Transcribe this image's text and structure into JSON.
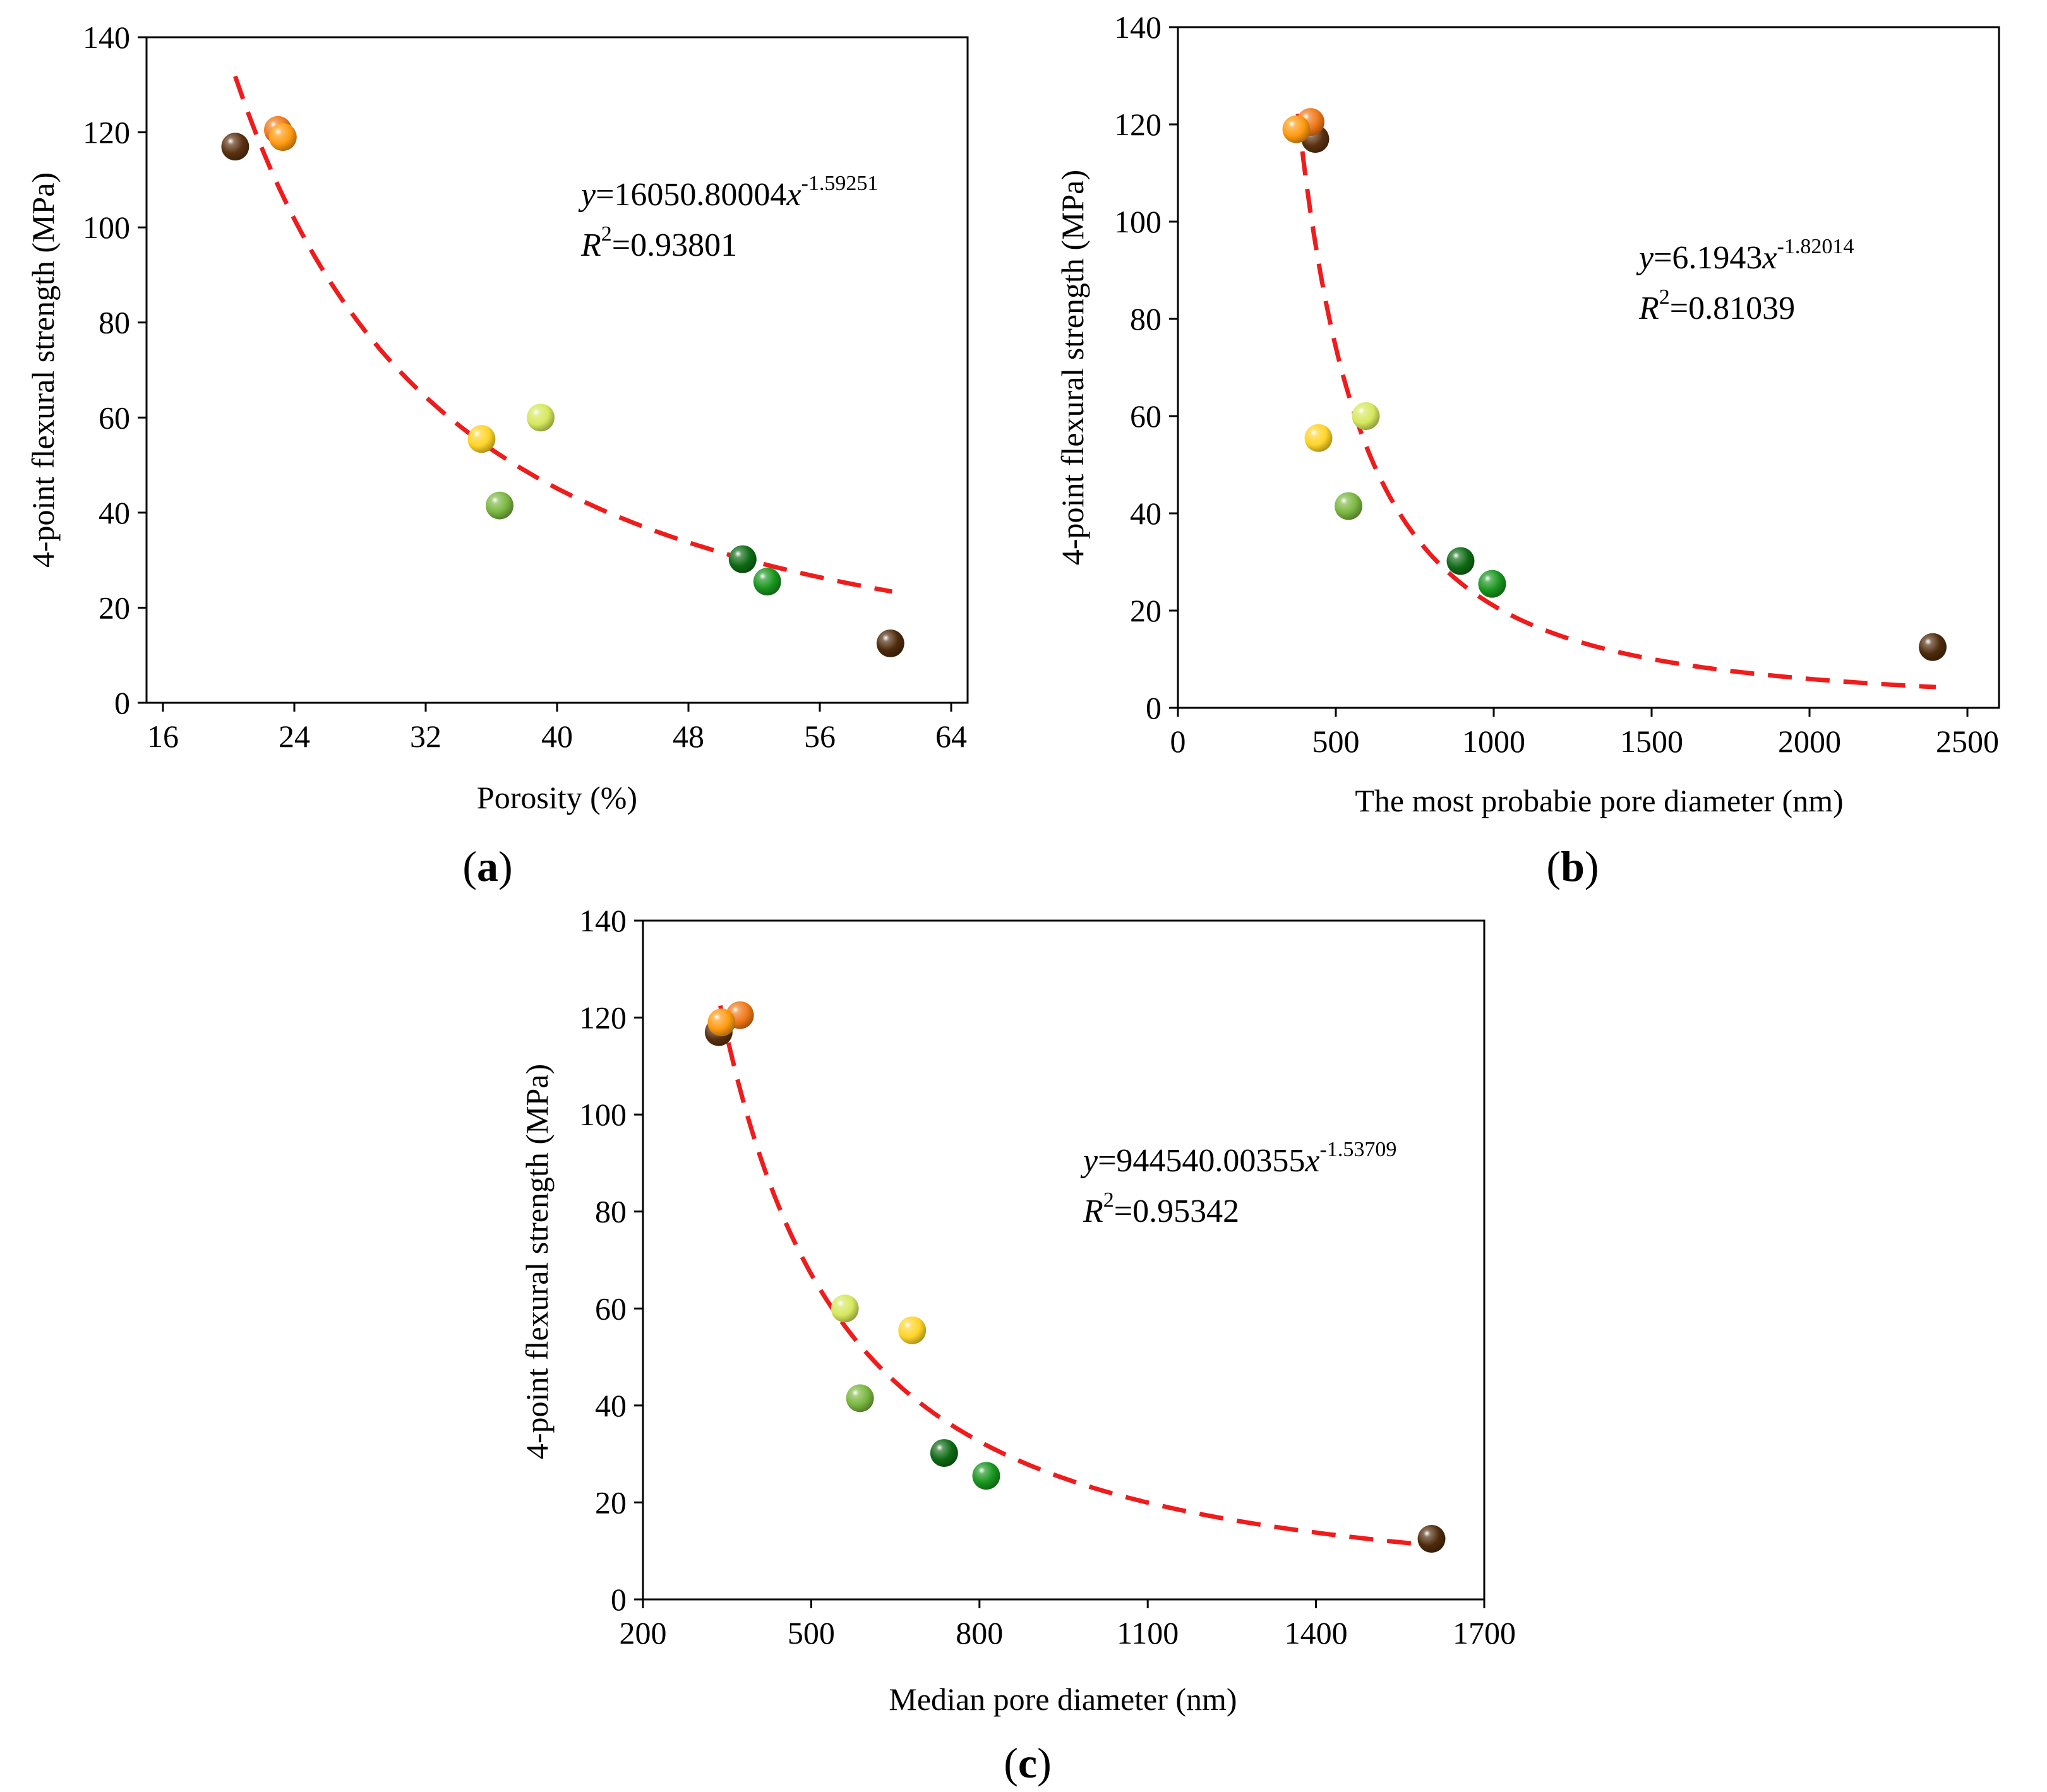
{
  "colors": {
    "fit_line": "#ee1c1c",
    "sample_1": "#5a3110",
    "sample_2": "#f07818",
    "sample_3": "#ff9a10",
    "sample_4": "#ffd428",
    "sample_5": "#d6e85c",
    "sample_6": "#7ab640",
    "sample_7": "#0e6a14",
    "sample_8": "#18951e",
    "sample_9": "#4e2a0c"
  },
  "chart_data": [
    {
      "panel": "(a)",
      "panel_letter": "a",
      "type": "scatter",
      "xlabel": "Porosity (%)",
      "ylabel": "4-point flexural strength (MPa)",
      "xlim": [
        15,
        65
      ],
      "ylim": [
        0,
        140
      ],
      "xticks": [
        16,
        24,
        32,
        40,
        48,
        56,
        64
      ],
      "yticks": [
        0,
        20,
        40,
        60,
        80,
        100,
        120,
        140
      ],
      "fit": {
        "model": "power",
        "a": 16050.80004,
        "b": -1.59251,
        "x_range": [
          20.4,
          60.4
        ]
      },
      "equation": {
        "lhs": "y",
        "coef": "=16050.80004",
        "var": "x",
        "exp": "-1.59251",
        "r_var": "R",
        "r_exp": "2",
        "r_val": "=0.93801"
      },
      "points": [
        {
          "x": 20.4,
          "y": 117,
          "color": "#5a3110"
        },
        {
          "x": 23.0,
          "y": 120.5,
          "color": "#f07818"
        },
        {
          "x": 23.3,
          "y": 119,
          "color": "#ff9a10"
        },
        {
          "x": 35.4,
          "y": 55.5,
          "color": "#ffd428"
        },
        {
          "x": 39.0,
          "y": 60,
          "color": "#d6e85c"
        },
        {
          "x": 36.5,
          "y": 41.5,
          "color": "#7ab640"
        },
        {
          "x": 51.3,
          "y": 30.2,
          "color": "#0e6a14"
        },
        {
          "x": 52.8,
          "y": 25.5,
          "color": "#18951e"
        },
        {
          "x": 60.3,
          "y": 12.5,
          "color": "#4e2a0c"
        }
      ]
    },
    {
      "panel": "(b)",
      "panel_letter": "b",
      "type": "scatter",
      "xlabel": "The most probabie pore diameter (nm)",
      "ylabel": "4-point flexural strength (MPa)",
      "xlim": [
        0,
        2600
      ],
      "ylim": [
        0,
        140
      ],
      "xticks": [
        0,
        500,
        1000,
        1500,
        2000,
        2500
      ],
      "yticks": [
        0,
        20,
        40,
        60,
        80,
        100,
        120,
        140
      ],
      "fit": {
        "model": "power_scaled",
        "a": 6.1943,
        "b": -1.82014,
        "x_range": [
          380,
          2400
        ]
      },
      "equation": {
        "lhs": "y",
        "coef": "=6.1943",
        "var": "x",
        "exp": "-1.82014",
        "r_var": "R",
        "r_exp": "2",
        "r_val": "=0.81039"
      },
      "points": [
        {
          "x": 435,
          "y": 117,
          "color": "#5a3110"
        },
        {
          "x": 420,
          "y": 120.5,
          "color": "#f07818"
        },
        {
          "x": 375,
          "y": 119,
          "color": "#ff9a10"
        },
        {
          "x": 445,
          "y": 55.5,
          "color": "#ffd428"
        },
        {
          "x": 595,
          "y": 60,
          "color": "#d6e85c"
        },
        {
          "x": 540,
          "y": 41.5,
          "color": "#7ab640"
        },
        {
          "x": 895,
          "y": 30.2,
          "color": "#0e6a14"
        },
        {
          "x": 995,
          "y": 25.5,
          "color": "#18951e"
        },
        {
          "x": 2390,
          "y": 12.5,
          "color": "#4e2a0c"
        }
      ]
    },
    {
      "panel": "(c)",
      "panel_letter": "c",
      "type": "scatter",
      "xlabel": "Median pore diameter (nm)",
      "ylabel": "4-point flexural strength (MPa)",
      "xlim": [
        200,
        1700
      ],
      "ylim": [
        0,
        140
      ],
      "xticks": [
        200,
        500,
        800,
        1100,
        1400,
        1700
      ],
      "yticks": [
        0,
        20,
        40,
        60,
        80,
        100,
        120,
        140
      ],
      "fit": {
        "model": "power",
        "a": 944540.00355,
        "b": -1.53709,
        "x_range": [
          338,
          1608
        ]
      },
      "equation": {
        "lhs": "y",
        "coef": "=944540.00355",
        "var": "x",
        "exp": "-1.53709",
        "r_var": "R",
        "r_exp": "2",
        "r_val": "=0.95342"
      },
      "points": [
        {
          "x": 335,
          "y": 117,
          "color": "#5a3110"
        },
        {
          "x": 373,
          "y": 120.5,
          "color": "#f07818"
        },
        {
          "x": 340,
          "y": 119,
          "color": "#ff9a10"
        },
        {
          "x": 680,
          "y": 55.5,
          "color": "#ffd428"
        },
        {
          "x": 560,
          "y": 60,
          "color": "#d6e85c"
        },
        {
          "x": 587,
          "y": 41.5,
          "color": "#7ab640"
        },
        {
          "x": 737,
          "y": 30.2,
          "color": "#0e6a14"
        },
        {
          "x": 812,
          "y": 25.5,
          "color": "#18951e"
        },
        {
          "x": 1606,
          "y": 12.5,
          "color": "#4e2a0c"
        }
      ]
    }
  ]
}
